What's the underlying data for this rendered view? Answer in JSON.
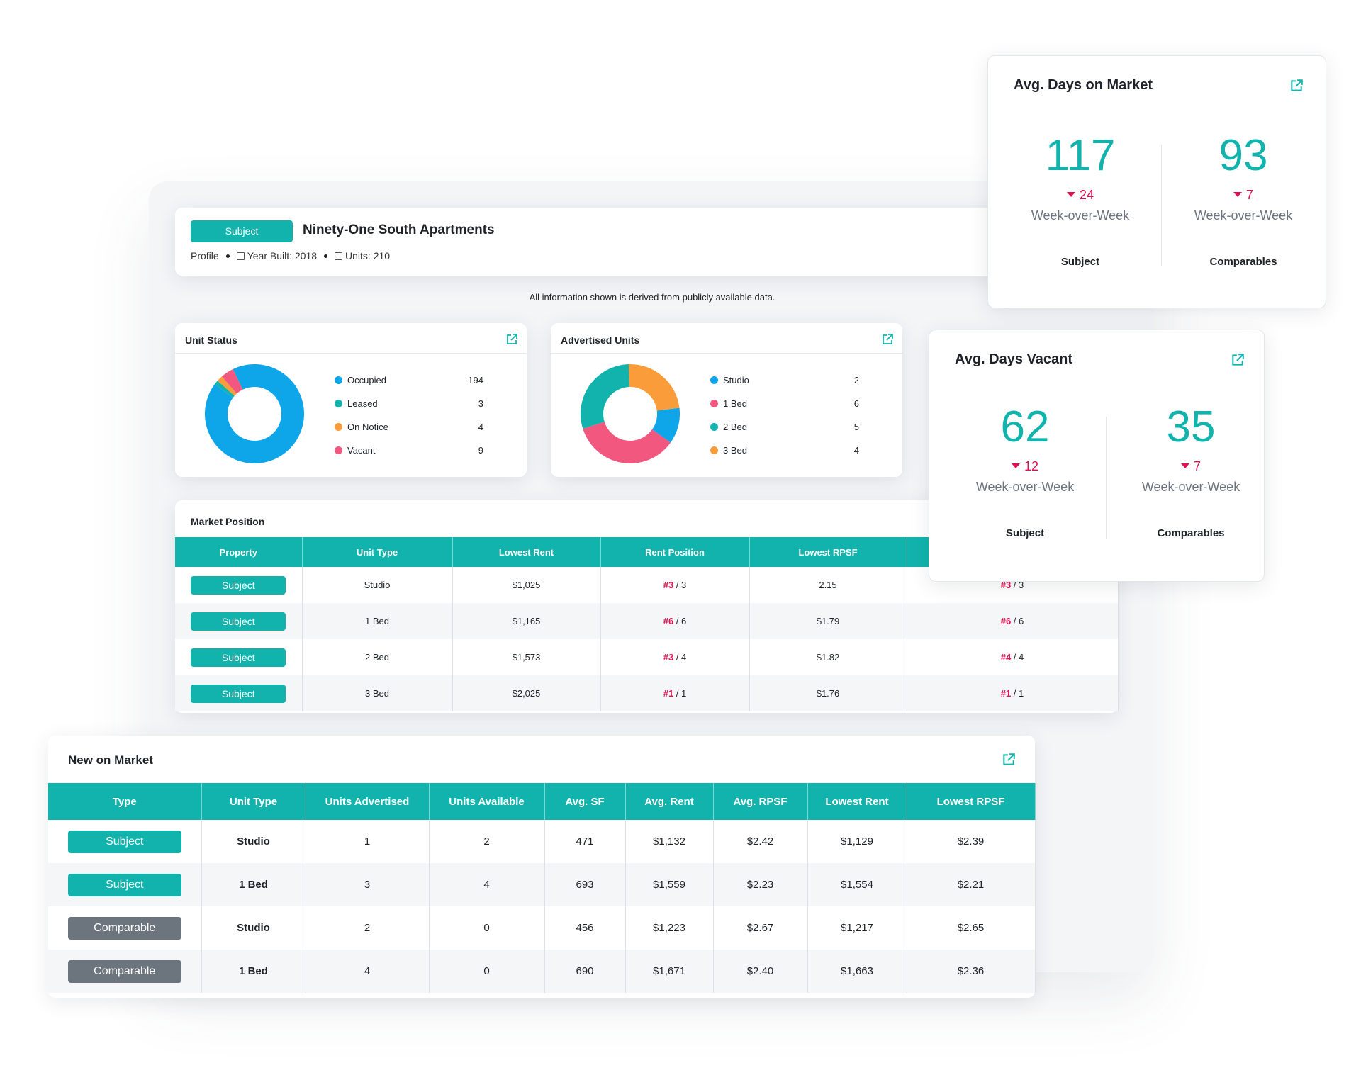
{
  "header": {
    "badge": "Subject",
    "property_name": "Ninety-One South Apartments",
    "profile": "Profile",
    "year_built": "Year Built: 2018",
    "units": "Units: 210"
  },
  "disclaimer": "All information shown is derived from publicly available data.",
  "unit_status": {
    "title": "Unit Status",
    "items": [
      {
        "label": "Occupied",
        "value": "194",
        "color": "#0ea5e9"
      },
      {
        "label": "Leased",
        "value": "3",
        "color": "#12b3ad"
      },
      {
        "label": "On Notice",
        "value": "4",
        "color": "#fb9c3b"
      },
      {
        "label": "Vacant",
        "value": "9",
        "color": "#f2577f"
      }
    ]
  },
  "advertised_units": {
    "title": "Advertised Units",
    "items": [
      {
        "label": "Studio",
        "value": "2",
        "color": "#0ea5e9"
      },
      {
        "label": "1 Bed",
        "value": "6",
        "color": "#f2577f"
      },
      {
        "label": "2 Bed",
        "value": "5",
        "color": "#12b3ad"
      },
      {
        "label": "3 Bed",
        "value": "4",
        "color": "#fb9c3b"
      }
    ]
  },
  "market_position": {
    "title": "Market Position",
    "columns": [
      "Property",
      "Unit Type",
      "Lowest Rent",
      "Rent Position",
      "Lowest RPSF",
      ""
    ],
    "rows": [
      {
        "property": "Subject",
        "unit_type": "Studio",
        "lowest_rent": "$1,025",
        "rent_rank": "#3",
        "rent_total": " / 3",
        "lowest_rpsf": "2.15",
        "rpsf_rank": "#3",
        "rpsf_total": " / 3"
      },
      {
        "property": "Subject",
        "unit_type": "1 Bed",
        "lowest_rent": "$1,165",
        "rent_rank": "#6",
        "rent_total": " / 6",
        "lowest_rpsf": "$1.79",
        "rpsf_rank": "#6",
        "rpsf_total": " / 6"
      },
      {
        "property": "Subject",
        "unit_type": "2 Bed",
        "lowest_rent": "$1,573",
        "rent_rank": "#3",
        "rent_total": " / 4",
        "lowest_rpsf": "$1.82",
        "rpsf_rank": "#4",
        "rpsf_total": " / 4"
      },
      {
        "property": "Subject",
        "unit_type": "3 Bed",
        "lowest_rent": "$2,025",
        "rent_rank": "#1",
        "rent_total": " / 1",
        "lowest_rpsf": "$1.76",
        "rpsf_rank": "#1",
        "rpsf_total": " / 1"
      }
    ]
  },
  "new_on_market": {
    "title": "New on Market",
    "columns": [
      "Type",
      "Unit Type",
      "Units Advertised",
      "Units Available",
      "Avg. SF",
      "Avg. Rent",
      "Avg. RPSF",
      "Lowest Rent",
      "Lowest RPSF"
    ],
    "rows": [
      {
        "type": "Subject",
        "kind": "subject",
        "unit_type": "Studio",
        "advertised": "1",
        "available": "2",
        "avg_sf": "471",
        "avg_rent": "$1,132",
        "avg_rpsf": "$2.42",
        "lowest_rent": "$1,129",
        "lowest_rpsf": "$2.39"
      },
      {
        "type": "Subject",
        "kind": "subject",
        "unit_type": "1 Bed",
        "advertised": "3",
        "available": "4",
        "avg_sf": "693",
        "avg_rent": "$1,559",
        "avg_rpsf": "$2.23",
        "lowest_rent": "$1,554",
        "lowest_rpsf": "$2.21"
      },
      {
        "type": "Comparable",
        "kind": "comparable",
        "unit_type": "Studio",
        "advertised": "2",
        "available": "0",
        "avg_sf": "456",
        "avg_rent": "$1,223",
        "avg_rpsf": "$2.67",
        "lowest_rent": "$1,217",
        "lowest_rpsf": "$2.65"
      },
      {
        "type": "Comparable",
        "kind": "comparable",
        "unit_type": "1 Bed",
        "advertised": "4",
        "available": "0",
        "avg_sf": "690",
        "avg_rent": "$1,671",
        "avg_rpsf": "$2.40",
        "lowest_rent": "$1,663",
        "lowest_rpsf": "$2.36"
      }
    ]
  },
  "days_on_market": {
    "title": "Avg. Days on Market",
    "subject": {
      "value": "117",
      "delta": "24",
      "period": "Week-over-Week",
      "label": "Subject"
    },
    "comparables": {
      "value": "93",
      "delta": "7",
      "period": "Week-over-Week",
      "label": "Comparables"
    }
  },
  "days_vacant": {
    "title": "Avg. Days Vacant",
    "subject": {
      "value": "62",
      "delta": "12",
      "period": "Week-over-Week",
      "label": "Subject"
    },
    "comparables": {
      "value": "35",
      "delta": "7",
      "period": "Week-over-Week",
      "label": "Comparables"
    }
  },
  "icons": {
    "external_link": "external-link-icon",
    "calendar": "calendar-icon",
    "building": "building-icon"
  },
  "colors": {
    "accent": "#12b3ad",
    "negative": "#e0114f",
    "comparable_badge": "#6c757d"
  }
}
